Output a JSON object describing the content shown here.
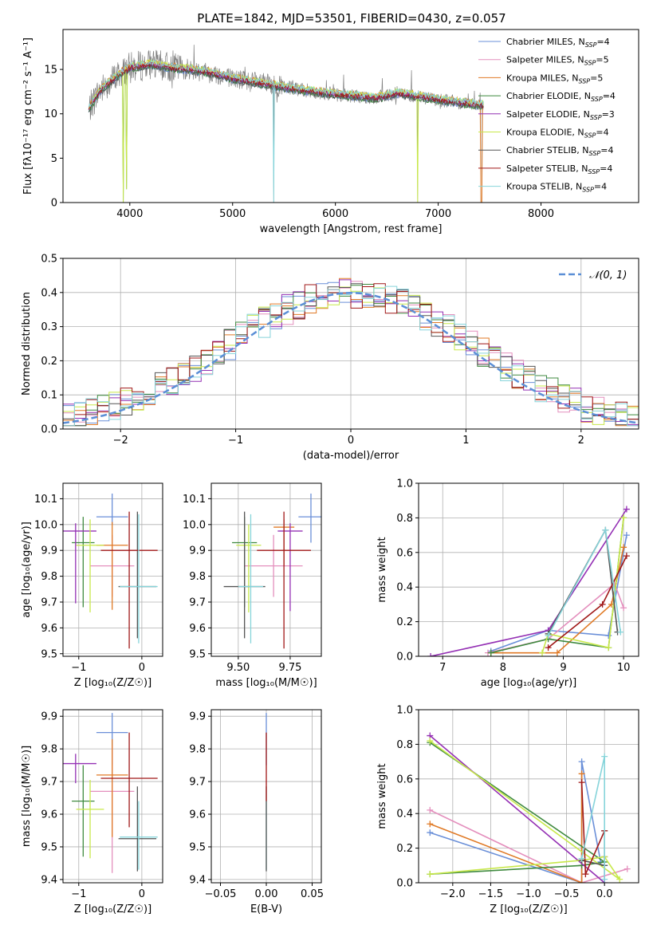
{
  "title": "PLATE=1842, MJD=53501, FIBERID=0430, z=0.057",
  "colors": {
    "chabrier_miles": "#6a8fd8",
    "salpeter_miles": "#e48fbd",
    "kroupa_miles": "#e07a26",
    "chabrier_elodie": "#3f8a3f",
    "salpeter_elodie": "#9430b4",
    "kroupa_elodie": "#c8e84a",
    "chabrier_stelib": "#555555",
    "salpeter_stelib": "#a01818",
    "kroupa_stelib": "#86d4da",
    "observed": "#808080",
    "normal": "#5b8fd6"
  },
  "chart_data": [
    {
      "type": "line",
      "title": "PLATE=1842, MJD=53501, FIBERID=0430, z=0.057",
      "xlabel": "wavelength [Angstrom, rest frame]",
      "ylabel": "Flux [fλ10⁻¹⁷ erg cm⁻² s⁻¹ A⁻¹]",
      "xlim": [
        3350,
        8950
      ],
      "ylim": [
        0,
        19.5
      ],
      "xticks": [
        4000,
        5000,
        6000,
        7000,
        8000
      ],
      "yticks": [
        0,
        5,
        10,
        15
      ],
      "grid": false,
      "legend": "top-right",
      "legend_entries": [
        {
          "label": "Chabrier MILES, N",
          "sub": "SSP",
          "suffix": "=4",
          "color": "chabrier_miles"
        },
        {
          "label": "Salpeter MILES, N",
          "sub": "SSP",
          "suffix": "=5",
          "color": "salpeter_miles"
        },
        {
          "label": "Kroupa MILES, N",
          "sub": "SSP",
          "suffix": "=5",
          "color": "kroupa_miles"
        },
        {
          "label": "Chabrier ELODIE, N",
          "sub": "SSP",
          "suffix": "=4",
          "color": "chabrier_elodie"
        },
        {
          "label": "Salpeter ELODIE, N",
          "sub": "SSP",
          "suffix": "=3",
          "color": "salpeter_elodie"
        },
        {
          "label": "Kroupa ELODIE, N",
          "sub": "SSP",
          "suffix": "=4",
          "color": "kroupa_elodie"
        },
        {
          "label": "Chabrier STELIB, N",
          "sub": "SSP",
          "suffix": "=4",
          "color": "chabrier_stelib"
        },
        {
          "label": "Salpeter STELIB, N",
          "sub": "SSP",
          "suffix": "=4",
          "color": "salpeter_stelib"
        },
        {
          "label": "Kroupa STELIB, N",
          "sub": "SSP",
          "suffix": "=4",
          "color": "kroupa_stelib"
        }
      ],
      "continuum": [
        [
          3600,
          10.5
        ],
        [
          3700,
          12.5
        ],
        [
          3800,
          13.5
        ],
        [
          3900,
          14.5
        ],
        [
          4000,
          15.2
        ],
        [
          4200,
          15.6
        ],
        [
          4400,
          15.2
        ],
        [
          4600,
          15.0
        ],
        [
          4800,
          14.6
        ],
        [
          5000,
          14.0
        ],
        [
          5200,
          13.6
        ],
        [
          5400,
          13.2
        ],
        [
          5600,
          12.8
        ],
        [
          5800,
          12.5
        ],
        [
          6000,
          12.2
        ],
        [
          6200,
          12.0
        ],
        [
          6400,
          11.8
        ],
        [
          6600,
          12.3
        ],
        [
          6800,
          12.0
        ],
        [
          7000,
          11.6
        ],
        [
          7200,
          11.3
        ],
        [
          7400,
          11.0
        ]
      ],
      "absorption_dips": [
        [
          3934,
          0
        ],
        [
          3969,
          1.5
        ],
        [
          4102,
          8
        ],
        [
          4340,
          11
        ],
        [
          5400,
          0
        ],
        [
          6800,
          0
        ],
        [
          7420,
          0
        ]
      ]
    },
    {
      "type": "histogram",
      "xlabel": "(data-model)/error",
      "ylabel": "Normed distribution",
      "xlim": [
        -2.5,
        2.5
      ],
      "ylim": [
        0,
        0.5
      ],
      "xticks": [
        -2,
        -1,
        0,
        1,
        2
      ],
      "yticks": [
        0.0,
        0.1,
        0.2,
        0.3,
        0.4,
        0.5
      ],
      "bin_edges_start": -2.5,
      "bin_width": 0.1,
      "grid": true,
      "legend": "top-right",
      "normal_label": "𝒩(0, 1)"
    },
    {
      "type": "errorbar",
      "xlabel": "Z [log₁₀(Z/Z☉)]",
      "ylabel": "age  [log₁₀(age/yr)]",
      "xlim": [
        -1.25,
        0.33
      ],
      "ylim": [
        9.49,
        10.16
      ],
      "xticks": [
        -1,
        0
      ],
      "yticks": [
        9.5,
        9.6,
        9.7,
        9.8,
        9.9,
        10.0,
        10.1
      ],
      "grid": true,
      "points": [
        {
          "color": "chabrier_miles",
          "x": -0.47,
          "xerr": 0.25,
          "y": 10.03,
          "yerr": [
            0.03,
            0.09
          ]
        },
        {
          "color": "salpeter_miles",
          "x": -0.47,
          "xerr": 0.35,
          "y": 9.84,
          "yerr": [
            0.12,
            0.12
          ]
        },
        {
          "color": "kroupa_miles",
          "x": -0.47,
          "xerr": 0.25,
          "y": 9.92,
          "yerr": [
            0.25,
            0.09
          ]
        },
        {
          "color": "chabrier_elodie",
          "x": -0.93,
          "xerr": 0.18,
          "y": 9.93,
          "yerr": [
            0.25,
            0.1
          ]
        },
        {
          "color": "salpeter_elodie",
          "x": -1.05,
          "xerr": 0.33,
          "y": 9.975,
          "yerr": [
            0.28,
            0.03
          ]
        },
        {
          "color": "kroupa_elodie",
          "x": -0.82,
          "xerr": 0.22,
          "y": 9.92,
          "yerr": [
            0.26,
            0.1
          ]
        },
        {
          "color": "chabrier_stelib",
          "x": -0.07,
          "xerr": 0.3,
          "y": 9.76,
          "yerr": [
            0.2,
            0.29
          ]
        },
        {
          "color": "salpeter_stelib",
          "x": -0.2,
          "xerr": 0.45,
          "y": 9.9,
          "yerr": [
            0.38,
            0.15
          ]
        },
        {
          "color": "kroupa_stelib",
          "x": -0.05,
          "xerr": 0.3,
          "y": 9.76,
          "yerr": [
            0.22,
            0.28
          ]
        }
      ]
    },
    {
      "type": "errorbar",
      "xlabel": "mass [log₁₀(M/M☉)]",
      "ylabel": "",
      "xlim": [
        9.37,
        9.9
      ],
      "ylim": [
        9.49,
        10.16
      ],
      "xticks": [
        9.5,
        9.75
      ],
      "yticks": [
        9.5,
        9.6,
        9.7,
        9.8,
        9.9,
        10.0,
        10.1
      ],
      "grid": true,
      "points": [
        {
          "color": "chabrier_miles",
          "x": 9.85,
          "xerr": 0.06,
          "y": 10.03,
          "yerr": [
            0.1,
            0.09
          ]
        },
        {
          "color": "salpeter_miles",
          "x": 9.67,
          "xerr": 0.14,
          "y": 9.84,
          "yerr": [
            0.12,
            0.12
          ]
        },
        {
          "color": "kroupa_miles",
          "x": 9.72,
          "xerr": 0.05,
          "y": 9.99,
          "yerr": [
            0.15,
            0.03
          ]
        },
        {
          "color": "chabrier_elodie",
          "x": 9.53,
          "xerr": 0.06,
          "y": 9.93,
          "yerr": [
            0.25,
            0.1
          ]
        },
        {
          "color": "salpeter_elodie",
          "x": 9.75,
          "xerr": 0.06,
          "y": 9.975,
          "yerr": [
            0.31,
            0.03
          ]
        },
        {
          "color": "kroupa_elodie",
          "x": 9.55,
          "xerr": 0.06,
          "y": 9.92,
          "yerr": [
            0.26,
            0.08
          ]
        },
        {
          "color": "chabrier_stelib",
          "x": 9.53,
          "xerr": 0.1,
          "y": 9.76,
          "yerr": [
            0.2,
            0.29
          ]
        },
        {
          "color": "salpeter_stelib",
          "x": 9.72,
          "xerr": 0.13,
          "y": 9.9,
          "yerr": [
            0.38,
            0.15
          ]
        },
        {
          "color": "kroupa_stelib",
          "x": 9.56,
          "xerr": 0.06,
          "y": 9.76,
          "yerr": [
            0.22,
            0.28
          ]
        }
      ]
    },
    {
      "type": "line",
      "xlabel": "age  [log₁₀(age/yr)]",
      "ylabel": "mass weight",
      "xlim": [
        6.6,
        10.25
      ],
      "ylim": [
        0.0,
        1.0
      ],
      "xticks": [
        7,
        8,
        9,
        10
      ],
      "yticks": [
        0.0,
        0.2,
        0.4,
        0.6,
        0.8,
        1.0
      ],
      "grid": true,
      "series": [
        {
          "color": "chabrier_miles",
          "x": [
            7.8,
            8.75,
            9.75,
            10.05
          ],
          "y": [
            0.03,
            0.15,
            0.12,
            0.7
          ]
        },
        {
          "color": "salpeter_miles",
          "x": [
            7.75,
            8.75,
            9.85,
            10.0
          ],
          "y": [
            0.02,
            0.1,
            0.42,
            0.28
          ]
        },
        {
          "color": "kroupa_miles",
          "x": [
            7.8,
            8.9,
            9.8,
            10.0
          ],
          "y": [
            0.02,
            0.02,
            0.3,
            0.63
          ]
        },
        {
          "color": "chabrier_elodie",
          "x": [
            7.8,
            8.75,
            9.75,
            10.0
          ],
          "y": [
            0.02,
            0.1,
            0.05,
            0.8
          ]
        },
        {
          "color": "salpeter_elodie",
          "x": [
            6.8,
            8.75,
            10.05
          ],
          "y": [
            0.0,
            0.15,
            0.85
          ]
        },
        {
          "color": "kroupa_elodie",
          "x": [
            8.65,
            8.75,
            9.75,
            10.0
          ],
          "y": [
            0.02,
            0.13,
            0.05,
            0.8
          ]
        },
        {
          "color": "chabrier_stelib",
          "x": [
            8.75,
            9.7,
            9.9
          ],
          "y": [
            0.13,
            0.73,
            0.14
          ]
        },
        {
          "color": "salpeter_stelib",
          "x": [
            8.75,
            9.65,
            10.05
          ],
          "y": [
            0.05,
            0.3,
            0.58
          ]
        },
        {
          "color": "kroupa_stelib",
          "x": [
            8.75,
            9.7,
            9.95
          ],
          "y": [
            0.12,
            0.73,
            0.14
          ]
        }
      ]
    },
    {
      "type": "errorbar",
      "xlabel": "Z [log₁₀(Z/Z☉)]",
      "ylabel": "mass [log₁₀(M/M☉)]",
      "xlim": [
        -1.25,
        0.33
      ],
      "ylim": [
        9.39,
        9.92
      ],
      "xticks": [
        -1,
        0
      ],
      "yticks": [
        9.4,
        9.5,
        9.6,
        9.7,
        9.8,
        9.9
      ],
      "grid": true,
      "points": [
        {
          "color": "chabrier_miles",
          "x": -0.47,
          "xerr": 0.25,
          "y": 9.85,
          "yerr": [
            0.1,
            0.06
          ]
        },
        {
          "color": "salpeter_miles",
          "x": -0.47,
          "xerr": 0.35,
          "y": 9.67,
          "yerr": [
            0.25,
            0.14
          ]
        },
        {
          "color": "kroupa_miles",
          "x": -0.47,
          "xerr": 0.25,
          "y": 9.72,
          "yerr": [
            0.19,
            0.11
          ]
        },
        {
          "color": "chabrier_elodie",
          "x": -0.93,
          "xerr": 0.18,
          "y": 9.64,
          "yerr": [
            0.17,
            0.11
          ]
        },
        {
          "color": "salpeter_elodie",
          "x": -1.05,
          "xerr": 0.33,
          "y": 9.755,
          "yerr": [
            0.06,
            0.03
          ]
        },
        {
          "color": "kroupa_elodie",
          "x": -0.82,
          "xerr": 0.22,
          "y": 9.615,
          "yerr": [
            0.15,
            0.09
          ]
        },
        {
          "color": "chabrier_stelib",
          "x": -0.07,
          "xerr": 0.3,
          "y": 9.525,
          "yerr": [
            0.1,
            0.16
          ]
        },
        {
          "color": "salpeter_stelib",
          "x": -0.2,
          "xerr": 0.45,
          "y": 9.71,
          "yerr": [
            0.15,
            0.14
          ]
        },
        {
          "color": "kroupa_stelib",
          "x": -0.05,
          "xerr": 0.3,
          "y": 9.53,
          "yerr": [
            0.1,
            0.11
          ]
        }
      ]
    },
    {
      "type": "errorbar",
      "xlabel": "E(B-V)",
      "ylabel": "",
      "xlim": [
        -0.06,
        0.06
      ],
      "ylim": [
        9.39,
        9.92
      ],
      "xticks": [
        -0.05,
        0.0,
        0.05
      ],
      "xtick_labels": [
        "−0.05",
        "0.00",
        "0.05"
      ],
      "yticks": [
        9.4,
        9.5,
        9.6,
        9.7,
        9.8,
        9.9
      ],
      "grid": true,
      "points": [
        {
          "color": "chabrier_miles",
          "x": 0.0,
          "xerr": 0.0,
          "y": 9.85,
          "yerr": [
            0.1,
            0.06
          ]
        },
        {
          "color": "kroupa_stelib",
          "x": 0.0,
          "xerr": 0.0,
          "y": 9.53,
          "yerr": [
            0.1,
            0.11
          ]
        },
        {
          "color": "chabrier_stelib",
          "x": 0.0,
          "xerr": 0.0,
          "y": 9.525,
          "yerr": [
            0.1,
            0.16
          ]
        },
        {
          "color": "salpeter_stelib",
          "x": 0.0,
          "xerr": 0.0,
          "y": 9.71,
          "yerr": [
            0.07,
            0.14
          ]
        }
      ]
    },
    {
      "type": "line",
      "xlabel": "Z [log₁₀(Z/Z☉)]",
      "ylabel": "mass weight",
      "xlim": [
        -2.45,
        0.45
      ],
      "ylim": [
        0.0,
        1.0
      ],
      "xticks": [
        -2.0,
        -1.5,
        -1.0,
        -0.5,
        0.0
      ],
      "xtick_labels": [
        "−2.0",
        "−1.5",
        "−1.0",
        "−0.5",
        "0.0"
      ],
      "yticks": [
        0.0,
        0.2,
        0.4,
        0.6,
        0.8,
        1.0
      ],
      "grid": true,
      "series": [
        {
          "color": "chabrier_miles",
          "x": [
            -2.3,
            -0.3,
            -0.3,
            -0.05
          ],
          "y": [
            0.29,
            0.0,
            0.7,
            0.12
          ]
        },
        {
          "color": "salpeter_miles",
          "x": [
            -2.3,
            -0.3,
            0.3
          ],
          "y": [
            0.42,
            0.0,
            0.08
          ]
        },
        {
          "color": "kroupa_miles",
          "x": [
            -2.3,
            -0.3,
            -0.3
          ],
          "y": [
            0.34,
            0.0,
            0.63
          ]
        },
        {
          "color": "chabrier_elodie",
          "x": [
            -2.3,
            -0.3,
            0.0,
            -2.3
          ],
          "y": [
            0.05,
            0.1,
            0.12,
            0.81
          ]
        },
        {
          "color": "salpeter_elodie",
          "x": [
            -2.3,
            0.0,
            0.0
          ],
          "y": [
            0.85,
            0.0,
            0.15
          ]
        },
        {
          "color": "kroupa_elodie",
          "x": [
            -2.3,
            -0.3,
            0.0,
            0.2,
            -2.3
          ],
          "y": [
            0.05,
            0.13,
            0.15,
            0.02,
            0.82
          ]
        },
        {
          "color": "chabrier_stelib",
          "x": [
            -0.3,
            0.0,
            0.0
          ],
          "y": [
            0.13,
            0.1,
            0.3
          ]
        },
        {
          "color": "salpeter_stelib",
          "x": [
            -0.3,
            -0.25,
            0.0
          ],
          "y": [
            0.58,
            0.05,
            0.3
          ]
        },
        {
          "color": "kroupa_stelib",
          "x": [
            -0.3,
            0.0,
            0.0
          ],
          "y": [
            0.14,
            0.73,
            0.02
          ]
        }
      ]
    }
  ]
}
